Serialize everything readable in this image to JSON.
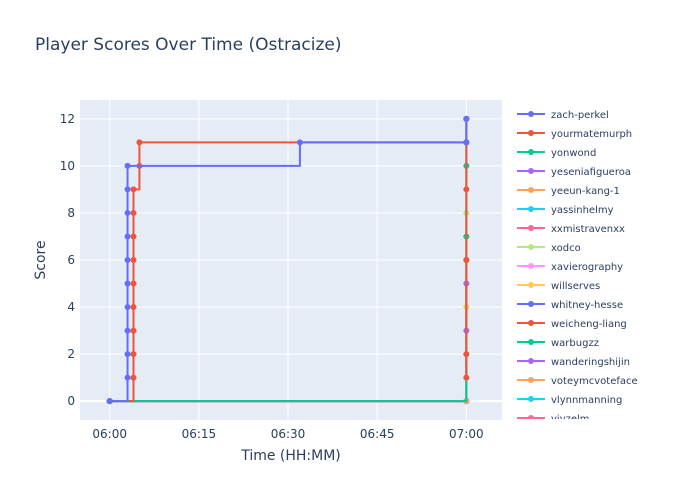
{
  "chart_data": {
    "type": "line",
    "title": "Player Scores Over Time (Ostracize)",
    "xlabel": "Time (HH:MM)",
    "ylabel": "Score",
    "x_ticks": [
      "06:00",
      "06:15",
      "06:30",
      "06:45",
      "07:00"
    ],
    "y_ticks": [
      0,
      2,
      4,
      6,
      8,
      10,
      12
    ],
    "xlim_minutes": [
      "05:55",
      "07:06"
    ],
    "ylim": [
      -0.8,
      12.8
    ],
    "grid": true,
    "legend_position": "right",
    "line_shape": "step",
    "series": [
      {
        "name": "zach-perkel",
        "color": "#636efa",
        "x": [
          "06:00",
          "06:03",
          "06:03",
          "06:03",
          "06:03",
          "06:03",
          "06:03",
          "06:03",
          "06:03",
          "06:03",
          "06:03",
          "06:32",
          "07:00",
          "07:00",
          "07:00"
        ],
        "y": [
          0,
          1,
          2,
          3,
          4,
          5,
          6,
          7,
          8,
          9,
          10,
          11,
          11,
          12,
          12
        ]
      },
      {
        "name": "yourmatemurph",
        "color": "#ef553b",
        "x": [
          "06:00",
          "06:04",
          "06:04",
          "06:04",
          "06:04",
          "06:04",
          "06:04",
          "06:04",
          "06:04",
          "06:04",
          "06:05",
          "06:05",
          "07:00",
          "07:00",
          "07:00",
          "07:00",
          "07:00",
          "07:00"
        ],
        "y": [
          0,
          1,
          2,
          3,
          4,
          5,
          6,
          7,
          8,
          9,
          10,
          11,
          11,
          12,
          9,
          6,
          2,
          1
        ]
      },
      {
        "name": "yonwond",
        "color": "#00cc96",
        "x": [
          "06:00",
          "07:00",
          "07:00",
          "07:00",
          "07:00"
        ],
        "y": [
          0,
          7,
          10,
          11,
          12
        ]
      },
      {
        "name": "yeseniafigueroa",
        "color": "#ab63fa",
        "x": [
          "06:00",
          "07:00",
          "07:00"
        ],
        "y": [
          0,
          3,
          5
        ]
      },
      {
        "name": "yeeun-kang-1",
        "color": "#ffa15a",
        "x": [
          "06:00",
          "07:00"
        ],
        "y": [
          0,
          0
        ]
      },
      {
        "name": "yassinhelmy",
        "color": "#19d3f3",
        "x": [
          "06:00",
          "07:00"
        ],
        "y": [
          0,
          0
        ]
      },
      {
        "name": "xxmistravenxx",
        "color": "#ff6692",
        "x": [
          "06:00",
          "07:00"
        ],
        "y": [
          0,
          0
        ]
      },
      {
        "name": "xodco",
        "color": "#b6e880",
        "x": [
          "06:00",
          "07:00"
        ],
        "y": [
          0,
          8
        ]
      },
      {
        "name": "xavierography",
        "color": "#ff97ff",
        "x": [
          "06:00",
          "07:00"
        ],
        "y": [
          0,
          0
        ]
      },
      {
        "name": "willserves",
        "color": "#fecb52",
        "x": [
          "06:00",
          "07:00"
        ],
        "y": [
          0,
          4
        ]
      },
      {
        "name": "whitney-hesse",
        "color": "#636efa",
        "x": [
          "06:00",
          "07:00"
        ],
        "y": [
          0,
          0
        ]
      },
      {
        "name": "weicheng-liang",
        "color": "#ef553b",
        "x": [
          "06:00",
          "07:00"
        ],
        "y": [
          0,
          6
        ]
      },
      {
        "name": "warbugzz",
        "color": "#00cc96",
        "x": [
          "06:00",
          "07:00"
        ],
        "y": [
          0,
          0
        ]
      },
      {
        "name": "wanderingshijin",
        "color": "#ab63fa",
        "x": [
          "06:00",
          "07:00"
        ],
        "y": [
          0,
          0
        ]
      },
      {
        "name": "voteymcvoteface",
        "color": "#ffa15a",
        "x": [
          "06:00",
          "07:00"
        ],
        "y": [
          0,
          0
        ]
      },
      {
        "name": "vlynnmanning",
        "color": "#19d3f3",
        "x": [
          "06:00",
          "07:00"
        ],
        "y": [
          0,
          0
        ]
      },
      {
        "name": "vivzelm",
        "color": "#ff6692",
        "x": [
          "06:00",
          "07:00"
        ],
        "y": [
          0,
          0
        ]
      }
    ]
  }
}
